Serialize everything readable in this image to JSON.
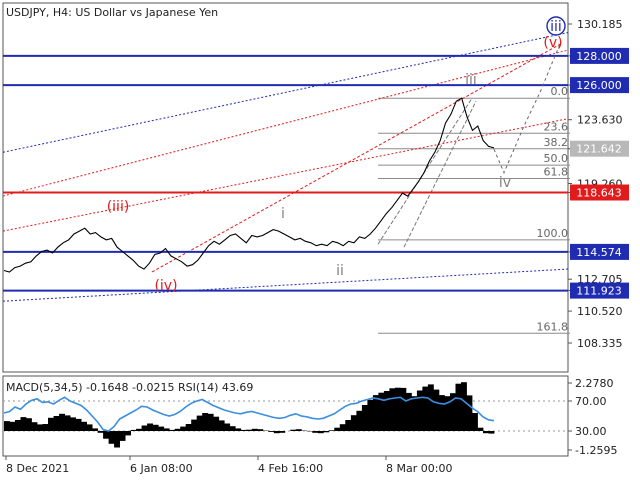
{
  "chart_data": {
    "type": "line",
    "title": "USDJPY, H4:  US Dollar vs Japanese Yen",
    "price_axis": {
      "range": [
        107.6,
        130.9
      ],
      "ticks": [
        "130.185",
        "128.000",
        "126.000",
        "123.630",
        "121.642",
        "119.260",
        "118.643",
        "114.574",
        "112.705",
        "111.923",
        "110.520",
        "108.335"
      ]
    },
    "time_axis": {
      "labels": [
        "8 Dec 2021",
        "6 Jan 08:00",
        "4 Feb 16:00",
        "8 Mar 00:00"
      ]
    },
    "horizontal_levels": [
      {
        "label": "128.000",
        "value": 128.0,
        "color": "#1f2bb0"
      },
      {
        "label": "126.000",
        "value": 126.0,
        "color": "#1f2bb0"
      },
      {
        "label": "118.643",
        "value": 118.643,
        "color": "#e11b1b"
      },
      {
        "label": "114.574",
        "value": 114.574,
        "color": "#1f2bb0"
      },
      {
        "label": "111.923",
        "value": 111.923,
        "color": "#1f2bb0"
      }
    ],
    "current_price": {
      "label": "121.642",
      "value": 121.642
    },
    "fibonacci": {
      "levels": [
        {
          "label": "0.0",
          "value": 125.1
        },
        {
          "label": "23.6",
          "value": 122.7
        },
        {
          "label": "38.2",
          "value": 121.64
        },
        {
          "label": "50.0",
          "value": 120.52
        },
        {
          "label": "61.8",
          "value": 119.6
        },
        {
          "label": "100.0",
          "value": 115.4
        },
        {
          "label": "161.8",
          "value": 109.0
        }
      ]
    },
    "wave_labels": [
      {
        "text": "(iii)",
        "color": "#e11b1b"
      },
      {
        "text": "(iv)",
        "color": "#e11b1b"
      },
      {
        "text": "(v)",
        "color": "#e11b1b"
      },
      {
        "text": "iii",
        "color": "#1f2bb0"
      },
      {
        "text": "i",
        "color": "#808080"
      },
      {
        "text": "ii",
        "color": "#808080"
      },
      {
        "text": "iii",
        "color": "#808080"
      },
      {
        "text": "iv",
        "color": "#808080"
      }
    ],
    "series": [
      {
        "name": "USDJPY",
        "values": [
          113.3,
          113.2,
          113.5,
          113.6,
          113.8,
          113.9,
          114.3,
          114.6,
          114.7,
          114.5,
          114.9,
          115.2,
          115.4,
          115.8,
          116.0,
          116.2,
          115.8,
          115.9,
          115.6,
          115.4,
          115.5,
          114.9,
          114.6,
          114.3,
          114.0,
          113.6,
          113.4,
          113.8,
          114.4,
          114.5,
          114.8,
          114.3,
          114.1,
          113.9,
          113.6,
          113.7,
          114.0,
          114.5,
          115.0,
          115.3,
          115.1,
          115.4,
          115.7,
          115.8,
          115.5,
          115.2,
          115.7,
          115.6,
          115.7,
          115.9,
          116.1,
          116.0,
          115.8,
          115.6,
          115.4,
          115.5,
          115.3,
          115.2,
          115.0,
          115.1,
          115.0,
          115.3,
          115.2,
          115.0,
          115.3,
          115.2,
          115.6,
          115.5,
          115.8,
          116.2,
          116.7,
          117.2,
          117.6,
          118.1,
          118.6,
          118.4,
          118.9,
          119.4,
          120.0,
          120.8,
          121.4,
          122.2,
          123.4,
          124.0,
          124.9,
          125.1,
          123.8,
          122.9,
          123.2,
          122.2,
          121.8,
          121.7
        ]
      }
    ],
    "forecast_path": {
      "name": "forecast",
      "values": [
        121.6,
        120.0,
        123.2,
        125.5,
        127.5,
        128.8
      ]
    },
    "indicator": {
      "title": "MACD(5,34,5) -0.1648 -0.0215 RSI(14) 43.69",
      "axis_ticks": [
        "2.2780",
        "70.00",
        "30.00",
        "-1.2595"
      ],
      "macd_histogram": [
        0.45,
        0.42,
        0.5,
        0.63,
        0.58,
        0.4,
        0.3,
        0.32,
        0.6,
        0.68,
        0.78,
        0.71,
        0.62,
        0.55,
        0.42,
        0.3,
        0.12,
        -0.08,
        -0.35,
        -0.58,
        -0.75,
        -0.45,
        -0.2,
        0.05,
        0.1,
        0.25,
        0.34,
        0.28,
        0.2,
        0.12,
        0.05,
        0.1,
        0.2,
        0.32,
        0.52,
        0.7,
        0.82,
        0.78,
        0.65,
        0.48,
        0.34,
        0.22,
        0.12,
        0.05,
        0.06,
        0.1,
        0.08,
        0.02,
        -0.04,
        -0.1,
        -0.08,
        0.0,
        0.06,
        0.08,
        0.02,
        -0.02,
        -0.08,
        -0.1,
        -0.06,
        0.03,
        0.15,
        0.31,
        0.5,
        0.72,
        0.92,
        1.18,
        1.42,
        1.63,
        1.74,
        1.82,
        1.94,
        1.97,
        1.96,
        1.73,
        1.58,
        1.84,
        2.02,
        2.12,
        1.88,
        1.63,
        1.58,
        1.72,
        2.15,
        2.22,
        1.62,
        0.82,
        0.15,
        -0.1,
        -0.12
      ],
      "rsi": [
        54,
        56,
        62,
        59,
        66,
        71,
        73,
        68,
        69,
        66,
        71,
        75,
        70,
        67,
        64,
        58,
        50,
        42,
        32,
        30,
        36,
        46,
        50,
        54,
        58,
        63,
        62,
        58,
        55,
        52,
        50,
        52,
        56,
        62,
        67,
        70,
        72,
        68,
        64,
        61,
        58,
        56,
        54,
        53,
        55,
        56,
        54,
        52,
        50,
        48,
        47,
        48,
        51,
        53,
        50,
        49,
        47,
        46,
        47,
        50,
        53,
        58,
        63,
        66,
        67,
        70,
        72,
        74,
        73,
        71,
        73,
        74,
        75,
        70,
        73,
        74,
        75,
        74,
        69,
        67,
        66,
        69,
        74,
        73,
        67,
        61,
        56,
        49,
        45,
        43.69
      ],
      "rsi_levels": [
        70,
        30
      ]
    }
  }
}
